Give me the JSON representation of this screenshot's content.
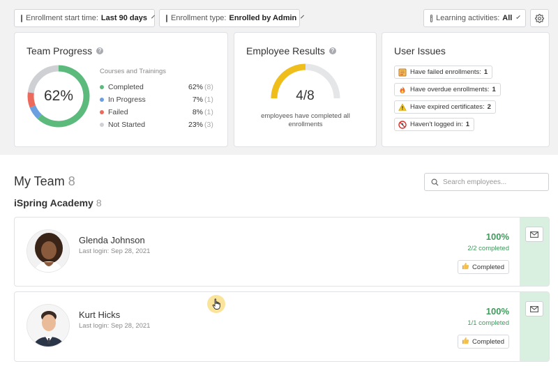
{
  "filters": {
    "enrollment_start": {
      "label": "Enrollment start time:",
      "value": "Last 90 days"
    },
    "enrollment_type": {
      "label": "Enrollment type:",
      "value": "Enrolled by Admin"
    },
    "learning_activities": {
      "label": "Learning activities:",
      "value": "All"
    }
  },
  "team_progress": {
    "title": "Team Progress",
    "percent_label": "62%",
    "legend_title": "Courses and Trainings",
    "items": [
      {
        "name": "Completed",
        "pct": "62%",
        "count": "(8)",
        "color": "#5cba7d",
        "value": 62
      },
      {
        "name": "In Progress",
        "pct": "7%",
        "count": "(1)",
        "color": "#6a9fe0",
        "value": 7
      },
      {
        "name": "Failed",
        "pct": "8%",
        "count": "(1)",
        "color": "#ec6a5c",
        "value": 8
      },
      {
        "name": "Not Started",
        "pct": "23%",
        "count": "(3)",
        "color": "#cfd0d3",
        "value": 23
      }
    ]
  },
  "employee_results": {
    "title": "Employee Results",
    "value_label": "4/8",
    "completed": 4,
    "total": 8,
    "caption": "employees have completed all enrollments",
    "fill_color": "#f0be1b",
    "track_color": "#e5e6e8"
  },
  "user_issues": {
    "title": "User Issues",
    "items": [
      {
        "label": "Have failed enrollments:",
        "count": "1",
        "icon": "failed-enrollments-icon"
      },
      {
        "label": "Have overdue enrollments:",
        "count": "1",
        "icon": "fire-icon"
      },
      {
        "label": "Have expired certificates:",
        "count": "2",
        "icon": "warning-icon"
      },
      {
        "label": "Haven't logged in:",
        "count": "1",
        "icon": "no-login-icon"
      }
    ]
  },
  "my_team": {
    "title": "My Team",
    "count": "8",
    "search_placeholder": "Search employees...",
    "org": {
      "name": "iSpring Academy",
      "count": "8"
    }
  },
  "employees": [
    {
      "name": "Glenda Johnson",
      "last_login": "Last login: Sep 28, 2021",
      "percent": "100%",
      "completed": "2/2 completed",
      "status": "Completed"
    },
    {
      "name": "Kurt Hicks",
      "last_login": "Last login: Sep 28, 2021",
      "percent": "100%",
      "completed": "1/1 completed",
      "status": "Completed"
    }
  ],
  "colors": {
    "accent_green": "#3f9a5c",
    "strip_green": "#d9efe0"
  }
}
